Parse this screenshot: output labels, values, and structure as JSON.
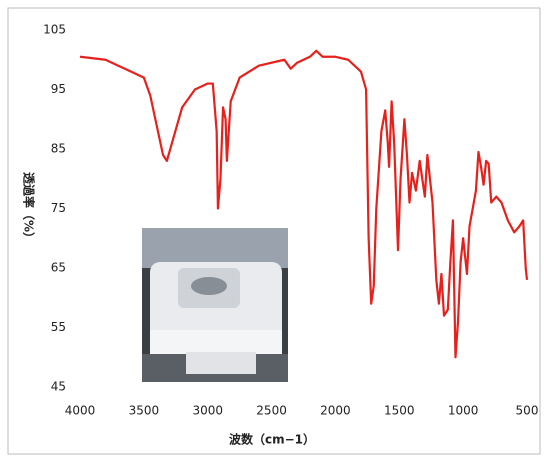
{
  "chart_data": {
    "type": "line",
    "xlabel": "波数（cm−1）",
    "ylabel": "透過率（%）",
    "xlim": [
      4000,
      500
    ],
    "xticks": [
      4000,
      3500,
      3000,
      2500,
      2000,
      1500,
      1000,
      500
    ],
    "ylim": [
      45,
      105
    ],
    "yticks": [
      45,
      55,
      65,
      75,
      85,
      95,
      105
    ],
    "series": [
      {
        "color": "#e8201c",
        "x": [
          4000,
          3800,
          3700,
          3600,
          3500,
          3450,
          3400,
          3350,
          3320,
          3280,
          3200,
          3100,
          3000,
          2960,
          2930,
          2920,
          2900,
          2880,
          2860,
          2850,
          2820,
          2750,
          2600,
          2400,
          2350,
          2300,
          2200,
          2150,
          2100,
          2000,
          1900,
          1800,
          1760,
          1740,
          1720,
          1700,
          1680,
          1640,
          1610,
          1590,
          1580,
          1560,
          1540,
          1510,
          1490,
          1460,
          1440,
          1420,
          1400,
          1370,
          1340,
          1300,
          1280,
          1260,
          1240,
          1210,
          1190,
          1170,
          1150,
          1120,
          1100,
          1080,
          1060,
          1040,
          1020,
          1000,
          970,
          950,
          900,
          880,
          860,
          840,
          820,
          800,
          780,
          740,
          700,
          650,
          600,
          560,
          530,
          510,
          500
        ],
        "values": [
          100.5,
          100,
          99,
          98,
          97,
          94,
          89,
          84,
          83,
          86,
          92,
          95,
          96,
          96,
          88,
          75,
          80,
          92,
          90,
          83,
          93,
          97,
          99,
          100,
          98.5,
          99.5,
          100.5,
          101.5,
          100.5,
          100.5,
          100,
          98,
          95,
          70,
          59,
          62,
          75,
          88,
          91.5,
          86,
          82,
          93,
          86,
          68,
          80,
          90,
          84,
          76,
          81,
          78,
          83,
          77,
          84,
          80,
          76,
          63,
          59,
          64,
          57,
          58,
          66,
          73,
          50,
          56,
          66,
          70,
          64,
          72,
          78,
          84.5,
          82,
          79,
          83,
          82.5,
          76,
          77,
          76,
          73,
          71,
          72,
          73,
          65,
          63
        ]
      }
    ]
  }
}
